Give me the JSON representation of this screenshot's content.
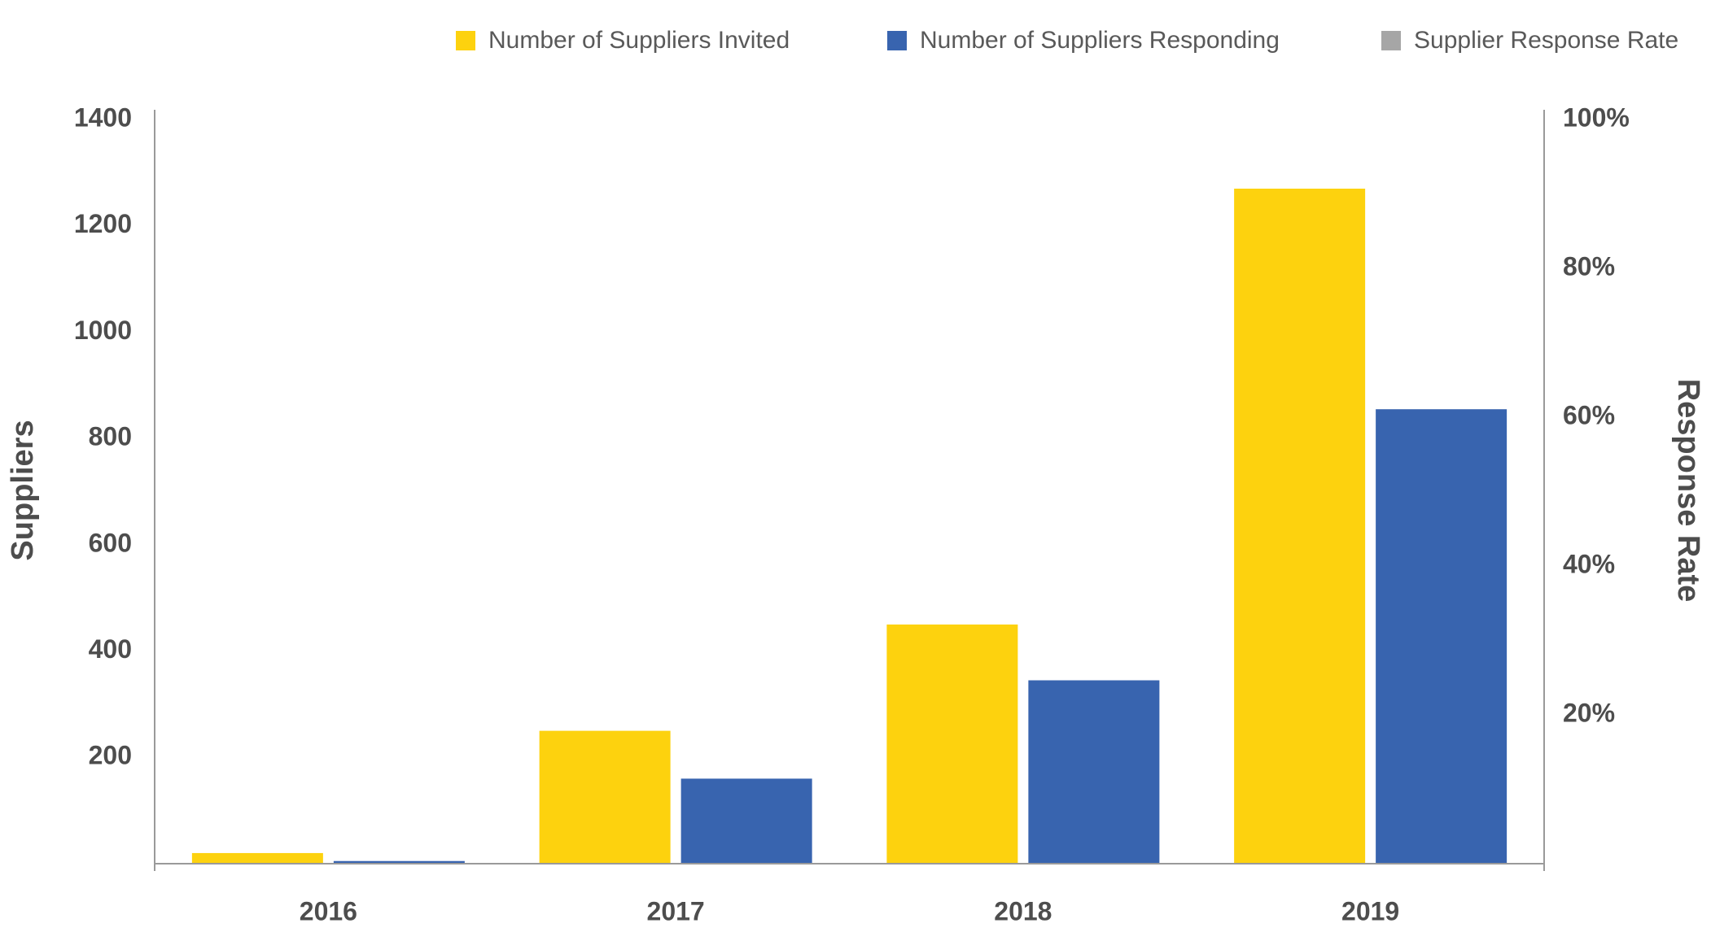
{
  "chart_data": {
    "type": "bar",
    "categories": [
      "2016",
      "2017",
      "2018",
      "2019"
    ],
    "series": [
      {
        "name": "Number of Suppliers Invited",
        "color": "#FDD20E",
        "values": [
          20,
          250,
          450,
          1270
        ]
      },
      {
        "name": "Number of Suppliers Responding",
        "color": "#3864AF",
        "values": [
          5,
          160,
          345,
          855
        ]
      },
      {
        "name": "Supplier Response Rate",
        "color": "#A6A6A6",
        "axis": "y2",
        "values": [
          null,
          null,
          null,
          null
        ]
      }
    ],
    "ylabel": "Suppliers",
    "y2label": "Response Rate",
    "ylim": [
      0,
      1400
    ],
    "yticks": [
      200,
      400,
      600,
      800,
      1000,
      1200,
      1400
    ],
    "y2lim": [
      0,
      100
    ],
    "y2ticks": [
      {
        "value": 20,
        "label": "20%"
      },
      {
        "value": 40,
        "label": "40%"
      },
      {
        "value": 60,
        "label": "60%"
      },
      {
        "value": 80,
        "label": "80%"
      },
      {
        "value": 100,
        "label": "100%"
      }
    ],
    "legend": "top",
    "grid": false
  }
}
